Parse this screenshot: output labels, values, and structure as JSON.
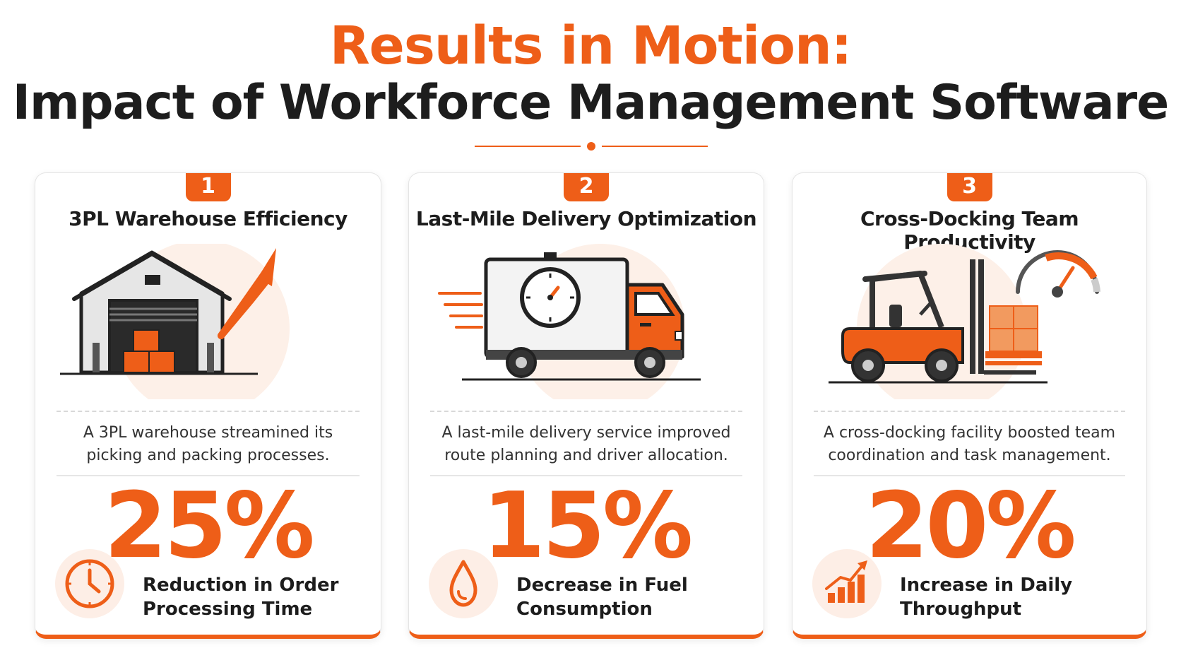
{
  "header": {
    "title_line1": "Results in Motion:",
    "title_line2": "Impact of Workforce Management Software"
  },
  "colors": {
    "accent": "#ee5e18",
    "text": "#1d1d1d",
    "soft": "#fdeee6"
  },
  "cards": [
    {
      "number": "1",
      "title": "3PL Warehouse Efficiency",
      "illustration": "warehouse-growth-icon",
      "description_line1": "A 3PL warehouse streamined its",
      "description_line2": "picking and packing processes.",
      "value": "25%",
      "stat_icon": "clock-icon",
      "label_line1": "Reduction in Order",
      "label_line2": "Processing Time"
    },
    {
      "number": "2",
      "title": "Last-Mile Delivery Optimization",
      "illustration": "delivery-truck-stopwatch-icon",
      "description_line1": "A last-mile delivery service improved",
      "description_line2": "route planning and driver allocation.",
      "value": "15%",
      "stat_icon": "fuel-drop-icon",
      "label_line1": "Decrease in Fuel",
      "label_line2": "Consumption"
    },
    {
      "number": "3",
      "title": "Cross-Docking Team Productivity",
      "illustration": "forklift-gauge-icon",
      "description_line1": "A cross-docking facility boosted team",
      "description_line2": "coordination and task management.",
      "value": "20%",
      "stat_icon": "growth-chart-icon",
      "label_line1": "Increase in Daily",
      "label_line2": "Throughput"
    }
  ]
}
